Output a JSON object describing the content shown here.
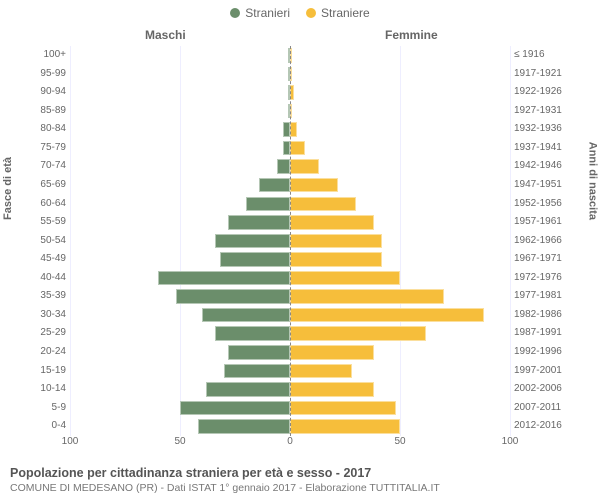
{
  "legend": {
    "male": {
      "label": "Stranieri",
      "color": "#6b8e6b"
    },
    "female": {
      "label": "Straniere",
      "color": "#f6be3b"
    }
  },
  "col_headers": {
    "male": "Maschi",
    "female": "Femmine"
  },
  "axis_labels": {
    "left": "Fasce di età",
    "right": "Anni di nascita"
  },
  "chart": {
    "type": "population-pyramid",
    "xlim": 100,
    "xticks": [
      100,
      50,
      0,
      50,
      100
    ],
    "background_color": "#ffffff",
    "grid_color": "#eeeeff",
    "bar_colors": {
      "male": "#6b8e6b",
      "female": "#f6be3b"
    },
    "rows": [
      {
        "age": "100+",
        "birth": "≤ 1916",
        "m": 0,
        "f": 0
      },
      {
        "age": "95-99",
        "birth": "1917-1921",
        "m": 0,
        "f": 0
      },
      {
        "age": "90-94",
        "birth": "1922-1926",
        "m": 0,
        "f": 2
      },
      {
        "age": "85-89",
        "birth": "1927-1931",
        "m": 0,
        "f": 0
      },
      {
        "age": "80-84",
        "birth": "1932-1936",
        "m": 3,
        "f": 3
      },
      {
        "age": "75-79",
        "birth": "1937-1941",
        "m": 3,
        "f": 7
      },
      {
        "age": "70-74",
        "birth": "1942-1946",
        "m": 6,
        "f": 13
      },
      {
        "age": "65-69",
        "birth": "1947-1951",
        "m": 14,
        "f": 22
      },
      {
        "age": "60-64",
        "birth": "1952-1956",
        "m": 20,
        "f": 30
      },
      {
        "age": "55-59",
        "birth": "1957-1961",
        "m": 28,
        "f": 38
      },
      {
        "age": "50-54",
        "birth": "1962-1966",
        "m": 34,
        "f": 42
      },
      {
        "age": "45-49",
        "birth": "1967-1971",
        "m": 32,
        "f": 42
      },
      {
        "age": "40-44",
        "birth": "1972-1976",
        "m": 60,
        "f": 50
      },
      {
        "age": "35-39",
        "birth": "1977-1981",
        "m": 52,
        "f": 70
      },
      {
        "age": "30-34",
        "birth": "1982-1986",
        "m": 40,
        "f": 88
      },
      {
        "age": "25-29",
        "birth": "1987-1991",
        "m": 34,
        "f": 62
      },
      {
        "age": "20-24",
        "birth": "1992-1996",
        "m": 28,
        "f": 38
      },
      {
        "age": "15-19",
        "birth": "1997-2001",
        "m": 30,
        "f": 28
      },
      {
        "age": "10-14",
        "birth": "2002-2006",
        "m": 38,
        "f": 38
      },
      {
        "age": "5-9",
        "birth": "2007-2011",
        "m": 50,
        "f": 48
      },
      {
        "age": "0-4",
        "birth": "2012-2016",
        "m": 42,
        "f": 50
      }
    ]
  },
  "footer": {
    "title": "Popolazione per cittadinanza straniera per età e sesso - 2017",
    "subtitle": "COMUNE DI MEDESANO (PR) - Dati ISTAT 1° gennaio 2017 - Elaborazione TUTTITALIA.IT"
  }
}
